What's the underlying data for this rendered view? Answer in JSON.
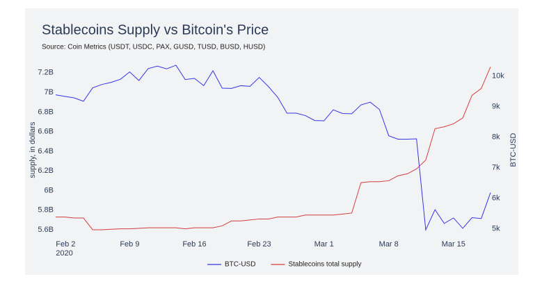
{
  "chart_data": {
    "type": "line",
    "title": "Stablecoins Supply vs Bitcoin's Price",
    "subtitle": "Source: Coin Metrics (USDT, USDC, PAX, GUSD, TUSD, BUSD, HUSD)",
    "ylabel": "supply, in dollars",
    "y2label": "BTC-USD",
    "x": [
      "2020-02-01",
      "2020-02-02",
      "2020-02-03",
      "2020-02-04",
      "2020-02-05",
      "2020-02-06",
      "2020-02-07",
      "2020-02-08",
      "2020-02-09",
      "2020-02-10",
      "2020-02-11",
      "2020-02-12",
      "2020-02-13",
      "2020-02-14",
      "2020-02-15",
      "2020-02-16",
      "2020-02-17",
      "2020-02-18",
      "2020-02-19",
      "2020-02-20",
      "2020-02-21",
      "2020-02-22",
      "2020-02-23",
      "2020-02-24",
      "2020-02-25",
      "2020-02-26",
      "2020-02-27",
      "2020-02-28",
      "2020-02-29",
      "2020-03-01",
      "2020-03-02",
      "2020-03-03",
      "2020-03-04",
      "2020-03-05",
      "2020-03-06",
      "2020-03-07",
      "2020-03-08",
      "2020-03-09",
      "2020-03-10",
      "2020-03-11",
      "2020-03-12",
      "2020-03-13",
      "2020-03-14",
      "2020-03-15",
      "2020-03-16",
      "2020-03-17",
      "2020-03-18",
      "2020-03-19"
    ],
    "xlim": [
      "2020-02-01",
      "2020-03-19"
    ],
    "xticks": [
      {
        "value": "2020-02-02",
        "label": "Feb 2\n2020"
      },
      {
        "value": "2020-02-09",
        "label": "Feb 9"
      },
      {
        "value": "2020-02-16",
        "label": "Feb 16"
      },
      {
        "value": "2020-02-23",
        "label": "Feb 23"
      },
      {
        "value": "2020-03-01",
        "label": "Mar 1"
      },
      {
        "value": "2020-03-08",
        "label": "Mar 8"
      },
      {
        "value": "2020-03-15",
        "label": "Mar 15"
      }
    ],
    "ylim": [
      5515000000,
      7305000000
    ],
    "yticks": [
      {
        "value": 5600000000,
        "label": "5.6B"
      },
      {
        "value": 5800000000,
        "label": "5.8B"
      },
      {
        "value": 6000000000,
        "label": "6B"
      },
      {
        "value": 6200000000,
        "label": "6.2B"
      },
      {
        "value": 6400000000,
        "label": "6.4B"
      },
      {
        "value": 6600000000,
        "label": "6.6B"
      },
      {
        "value": 6800000000,
        "label": "6.8B"
      },
      {
        "value": 7000000000,
        "label": "7B"
      },
      {
        "value": 7200000000,
        "label": "7.2B"
      }
    ],
    "y2lim": [
      4700,
      10450
    ],
    "y2ticks": [
      {
        "value": 5000,
        "label": "5k"
      },
      {
        "value": 6000,
        "label": "6k"
      },
      {
        "value": 7000,
        "label": "7k"
      },
      {
        "value": 8000,
        "label": "8k"
      },
      {
        "value": 9000,
        "label": "9k"
      },
      {
        "value": 10000,
        "label": "10k"
      }
    ],
    "legend": "bottom",
    "series": [
      {
        "name": "BTC-USD",
        "color": "#3434e6",
        "axis": "y2",
        "values": [
          9390,
          9340,
          9290,
          9180,
          9620,
          9730,
          9800,
          9900,
          10140,
          9860,
          10250,
          10330,
          10240,
          10360,
          9890,
          9930,
          9690,
          10180,
          9610,
          9600,
          9690,
          9670,
          9960,
          9660,
          9310,
          8790,
          8790,
          8710,
          8550,
          8540,
          8900,
          8780,
          8770,
          9060,
          9150,
          8910,
          8050,
          7940,
          7940,
          7950,
          4970,
          5630,
          5180,
          5360,
          5020,
          5370,
          5340,
          6190
        ]
      },
      {
        "name": "Stablecoins total supply",
        "color": "#d43d3d",
        "values": [
          5730000000,
          5730000000,
          5720000000,
          5720000000,
          5600000000,
          5600000000,
          5605000000,
          5610000000,
          5610000000,
          5615000000,
          5620000000,
          5620000000,
          5620000000,
          5620000000,
          5610000000,
          5620000000,
          5620000000,
          5620000000,
          5640000000,
          5690000000,
          5690000000,
          5700000000,
          5710000000,
          5710000000,
          5730000000,
          5730000000,
          5730000000,
          5750000000,
          5750000000,
          5750000000,
          5750000000,
          5760000000,
          5770000000,
          6080000000,
          6090000000,
          6090000000,
          6100000000,
          6150000000,
          6170000000,
          6220000000,
          6310000000,
          6630000000,
          6650000000,
          6680000000,
          6740000000,
          6970000000,
          7040000000,
          7260000000
        ]
      }
    ]
  }
}
